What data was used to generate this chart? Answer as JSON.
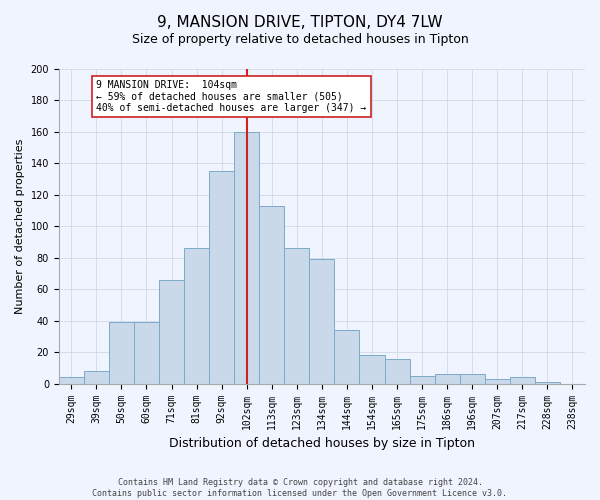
{
  "title": "9, MANSION DRIVE, TIPTON, DY4 7LW",
  "subtitle": "Size of property relative to detached houses in Tipton",
  "xlabel": "Distribution of detached houses by size in Tipton",
  "ylabel": "Number of detached properties",
  "bin_labels": [
    "29sqm",
    "39sqm",
    "50sqm",
    "60sqm",
    "71sqm",
    "81sqm",
    "92sqm",
    "102sqm",
    "113sqm",
    "123sqm",
    "134sqm",
    "144sqm",
    "154sqm",
    "165sqm",
    "175sqm",
    "186sqm",
    "196sqm",
    "207sqm",
    "217sqm",
    "228sqm",
    "238sqm"
  ],
  "bar_values": [
    4,
    8,
    39,
    39,
    66,
    86,
    135,
    160,
    113,
    86,
    79,
    34,
    18,
    16,
    5,
    6,
    6,
    3,
    4,
    1,
    0
  ],
  "bar_color": "#c9d9ea",
  "bar_edge_color": "#7aaac8",
  "vline_x_index": 7,
  "vline_color": "#cc2222",
  "annotation_title": "9 MANSION DRIVE:  104sqm",
  "annotation_line1": "← 59% of detached houses are smaller (505)",
  "annotation_line2": "40% of semi-detached houses are larger (347) →",
  "annotation_box_facecolor": "#ffffff",
  "annotation_box_edgecolor": "#cc2222",
  "ylim": [
    0,
    200
  ],
  "yticks": [
    0,
    20,
    40,
    60,
    80,
    100,
    120,
    140,
    160,
    180,
    200
  ],
  "footnote1": "Contains HM Land Registry data © Crown copyright and database right 2024.",
  "footnote2": "Contains public sector information licensed under the Open Government Licence v3.0.",
  "bg_color": "#f0f4ff",
  "grid_color": "#d0d8e8",
  "title_fontsize": 11,
  "subtitle_fontsize": 9,
  "ylabel_fontsize": 8,
  "xlabel_fontsize": 9,
  "tick_fontsize": 7,
  "footnote_fontsize": 6
}
